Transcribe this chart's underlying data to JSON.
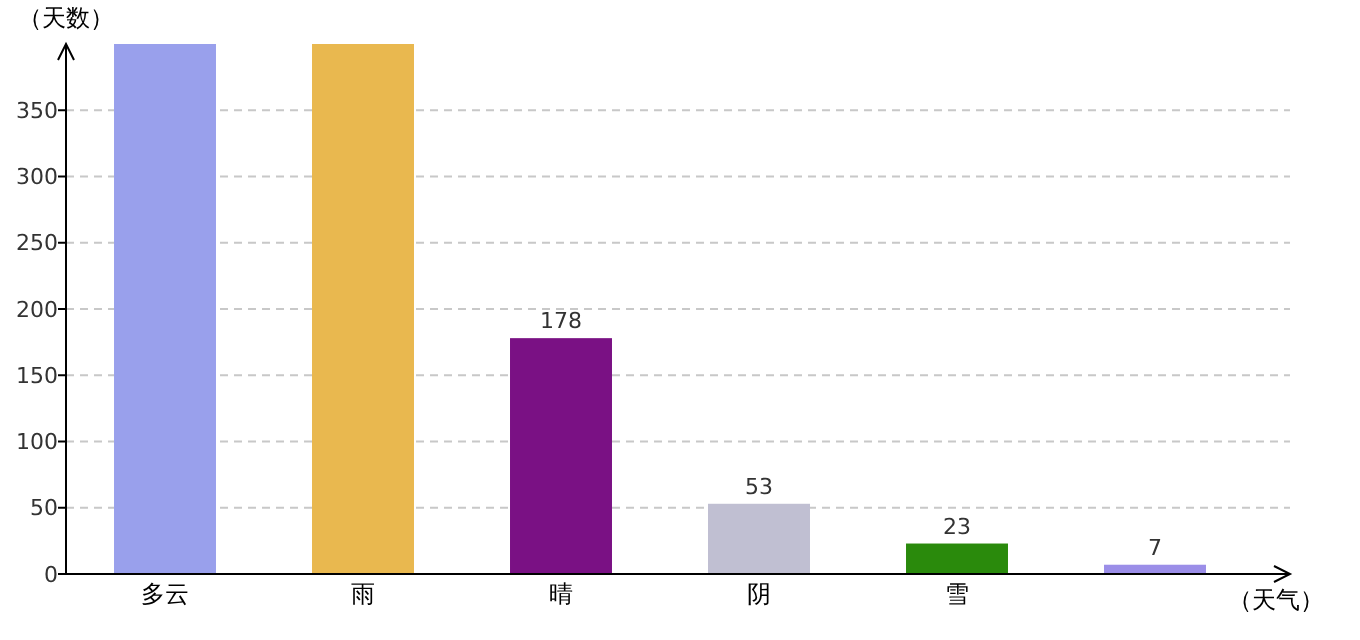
{
  "chart_data": {
    "type": "bar",
    "ylabel": "（天数）",
    "xlabel": "（天气）",
    "categories": [
      "多云",
      "雨",
      "晴",
      "阴",
      "雪",
      null
    ],
    "values": [
      400,
      400,
      178,
      53,
      23,
      7
    ],
    "colors": [
      "#99a0ec",
      "#e9b84f",
      "#7a1184",
      "#c0bfd2",
      "#2a8a0c",
      "#9b8ee8"
    ],
    "value_labels": [
      null,
      null,
      "178",
      "53",
      "23",
      "7"
    ],
    "ylim": [
      0,
      400
    ],
    "yticks": [
      0,
      50,
      100,
      150,
      200,
      250,
      300,
      350
    ],
    "grid": "y"
  }
}
